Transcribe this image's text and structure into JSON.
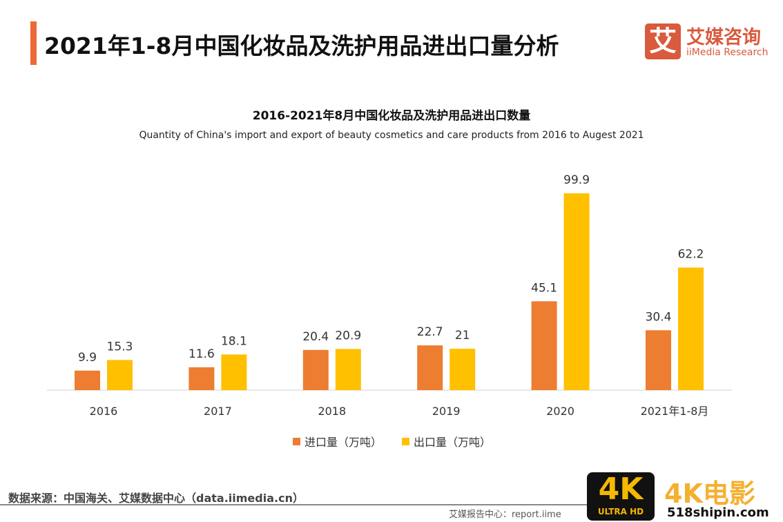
{
  "header": {
    "title": "2021年1-8月中国化妆品及洗护用品进出口量分析"
  },
  "logo": {
    "mark": "艾",
    "cn": "艾媒咨询",
    "en": "iiMedia Research"
  },
  "chart_data": {
    "type": "bar",
    "title": "2016-2021年8月中国化妆品及洗护用品进出口数量",
    "subtitle": "Quantity of China's import and export of beauty cosmetics and care products from 2016 to Augest 2021",
    "categories": [
      "2016",
      "2017",
      "2018",
      "2019",
      "2020",
      "2021年1-8月"
    ],
    "series": [
      {
        "name": "进口量（万吨）",
        "color": "#ed7d31",
        "values": [
          9.9,
          11.6,
          20.4,
          22.7,
          45.1,
          30.4
        ]
      },
      {
        "name": "出口量（万吨）",
        "color": "#ffc000",
        "values": [
          15.3,
          18.1,
          20.9,
          21,
          99.9,
          62.2
        ]
      }
    ],
    "ylim": [
      0,
      105
    ],
    "grid": false,
    "legend": "bottom"
  },
  "footer": {
    "source": "数据来源：中国海关、艾媒数据中心（data.iimedia.cn）",
    "report": "艾媒报告中心：report.iime"
  },
  "watermark": {
    "badge": "4K",
    "badge_sub": "ULTRA HD",
    "cn": "4K电影",
    "url": "518shipin.com"
  }
}
